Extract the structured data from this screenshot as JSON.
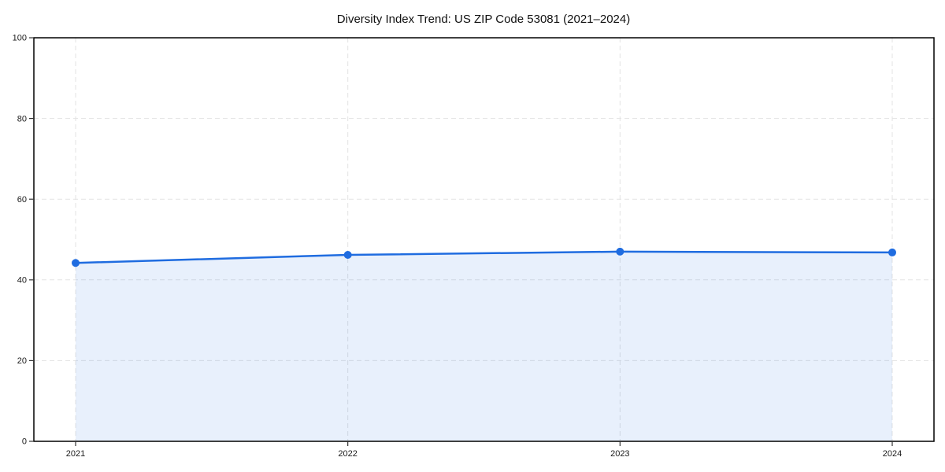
{
  "chart_data": {
    "type": "line",
    "title": "Diversity Index Trend: US ZIP Code 53081 (2021–2024)",
    "x": [
      "2021",
      "2022",
      "2023",
      "2024"
    ],
    "series": [
      {
        "name": "Diversity Index",
        "values": [
          44.2,
          46.2,
          47.0,
          46.8
        ]
      }
    ],
    "xlabel": "",
    "ylabel": "",
    "ylim": [
      0,
      100
    ],
    "yticks": [
      0,
      20,
      40,
      60,
      80,
      100
    ],
    "grid": true,
    "grid_style": "dashed",
    "legend_position": "none",
    "area_fill": true,
    "colors": {
      "line": "#1f6ce0",
      "marker": "#1f6ce0",
      "fill": "#1f6ce0",
      "fill_opacity": 0.1,
      "grid": "#e3e3e3",
      "spine": "#000000",
      "tick": "#333333",
      "background": "#ffffff"
    }
  }
}
